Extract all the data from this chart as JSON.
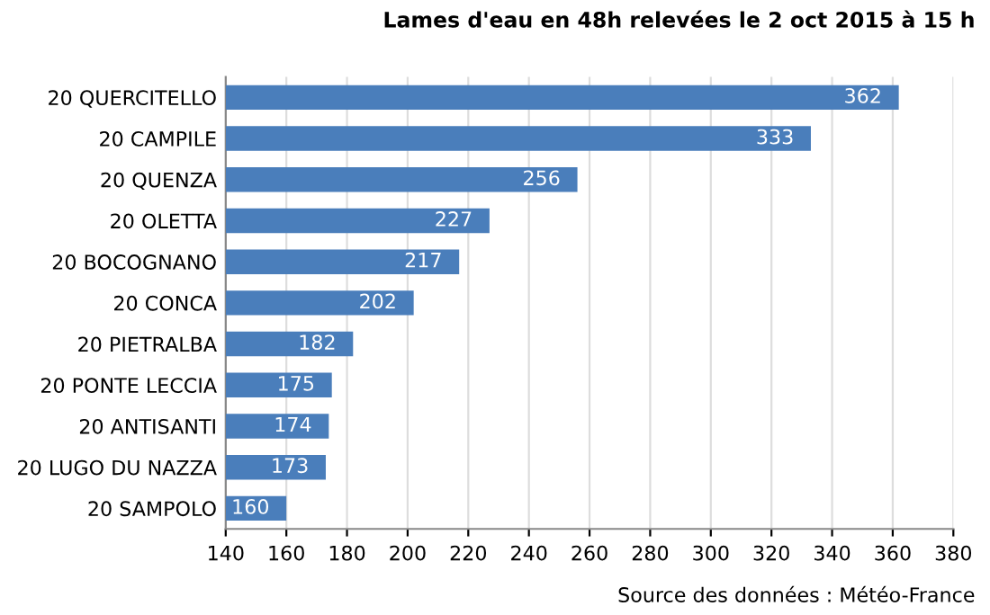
{
  "chart_data": {
    "type": "bar",
    "orientation": "horizontal",
    "title": "Lames d'eau en 48h relevées le 2 oct 2015 à 15 h",
    "categories": [
      "20 QUERCITELLO",
      "20 CAMPILE",
      "20 QUENZA",
      "20 OLETTA",
      "20 BOCOGNANO",
      "20 CONCA",
      "20 PIETRALBA",
      "20 PONTE LECCIA",
      "20 ANTISANTI",
      "20 LUGO DU NAZZA",
      "20 SAMPOLO"
    ],
    "values": [
      362,
      333,
      256,
      227,
      217,
      202,
      182,
      175,
      174,
      173,
      160
    ],
    "color": "#4a7ebb",
    "xlim": [
      140,
      380
    ],
    "xticks": [
      140,
      160,
      180,
      200,
      220,
      240,
      260,
      280,
      300,
      320,
      340,
      360,
      380
    ],
    "grid": "x",
    "data_labels": true,
    "legend": false,
    "annotations": [
      "Source des données : Météo-France"
    ]
  }
}
